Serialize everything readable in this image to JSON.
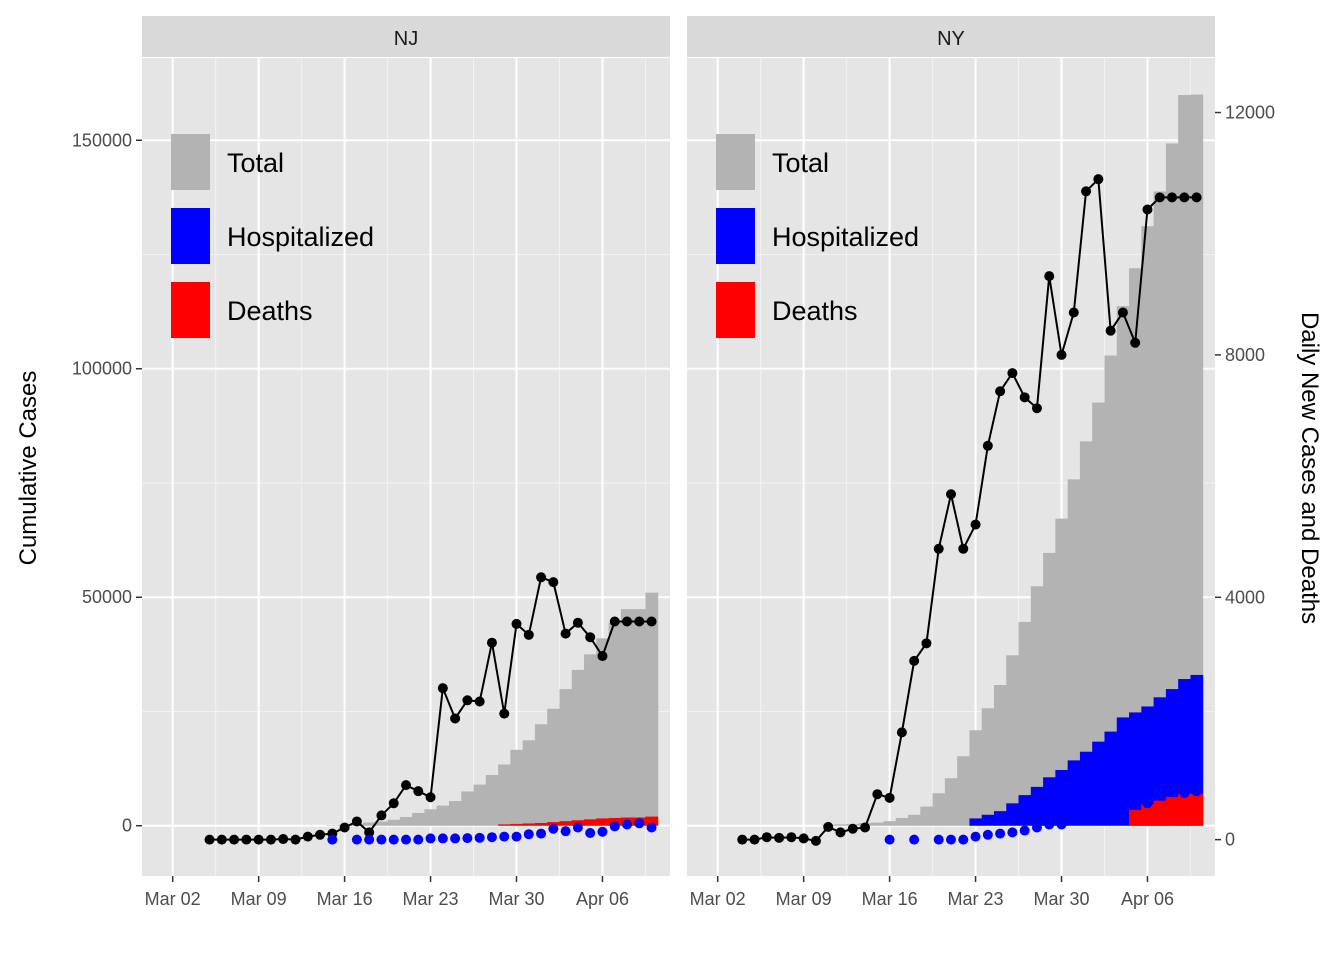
{
  "colors": {
    "panel_bg": "#e5e5e5",
    "strip_bg": "#d9d9d9",
    "total": "#b3b3b3",
    "hospitalized": "#0000ff",
    "deaths": "#ff0000",
    "daily_cases": "#000000",
    "daily_deaths": "#0000ff"
  },
  "chart_data": {
    "type": "bar",
    "y_left_label": "Cumulative Cases",
    "y_right_label": "Daily New Cases and Deaths",
    "ylim_left": [
      -11000,
      168000
    ],
    "ylim_right": [
      -600,
      12900
    ],
    "y_left_ticks": [
      0,
      50000,
      100000,
      150000
    ],
    "y_left_tick_labels": [
      "0",
      "50000",
      "100000",
      "150000"
    ],
    "y_right_ticks": [
      0,
      4000,
      8000,
      12000
    ],
    "y_right_tick_labels": [
      "0",
      "4000",
      "8000",
      "12000"
    ],
    "x_ticks": [
      "Mar 02",
      "Mar 09",
      "Mar 16",
      "Mar 23",
      "Mar 30",
      "Apr 06"
    ],
    "x_range_days_from_mar_01": [
      -1.5,
      41.5
    ],
    "legend": {
      "position": "top-left",
      "entries": [
        {
          "label": "Total",
          "color": "#b3b3b3"
        },
        {
          "label": "Hospitalized",
          "color": "#0000ff"
        },
        {
          "label": "Deaths",
          "color": "#ff0000"
        }
      ]
    },
    "panels": [
      {
        "name": "NJ",
        "cumulative_dates": [
          "2020-03-04",
          "2020-03-05",
          "2020-03-06",
          "2020-03-07",
          "2020-03-08",
          "2020-03-09",
          "2020-03-10",
          "2020-03-11",
          "2020-03-12",
          "2020-03-13",
          "2020-03-14",
          "2020-03-15",
          "2020-03-16",
          "2020-03-17",
          "2020-03-18",
          "2020-03-19",
          "2020-03-20",
          "2020-03-21",
          "2020-03-22",
          "2020-03-23",
          "2020-03-24",
          "2020-03-25",
          "2020-03-26",
          "2020-03-27",
          "2020-03-28",
          "2020-03-29",
          "2020-03-30",
          "2020-03-31",
          "2020-04-01",
          "2020-04-02",
          "2020-04-03",
          "2020-04-04",
          "2020-04-05",
          "2020-04-06",
          "2020-04-07",
          "2020-04-08",
          "2020-04-09",
          "2020-04-10"
        ],
        "total": [
          0,
          0,
          0,
          0,
          0,
          0,
          0,
          0,
          0,
          0,
          0,
          100,
          200,
          400,
          700,
          900,
          1300,
          1900,
          2800,
          3600,
          4400,
          5400,
          7500,
          9000,
          11100,
          13400,
          16600,
          18700,
          22200,
          25600,
          29900,
          34100,
          37500,
          41000,
          44400,
          47400,
          47400,
          51000
        ],
        "hospitalized": [
          0,
          0,
          0,
          0,
          0,
          0,
          0,
          0,
          0,
          0,
          0,
          0,
          0,
          0,
          0,
          0,
          0,
          0,
          0,
          0,
          0,
          0,
          0,
          0,
          0,
          0,
          0,
          0,
          0,
          0,
          0,
          0,
          0,
          0,
          0,
          0,
          0,
          0
        ],
        "deaths": [
          0,
          0,
          0,
          0,
          0,
          0,
          0,
          0,
          0,
          0,
          0,
          0,
          0,
          0,
          0,
          0,
          0,
          0,
          0,
          0,
          0,
          0,
          0,
          0,
          0,
          300,
          400,
          500,
          600,
          800,
          1000,
          1200,
          1400,
          1600,
          1700,
          1800,
          1800,
          2000
        ],
        "daily_case_dates": [
          "2020-03-05",
          "2020-03-06",
          "2020-03-07",
          "2020-03-08",
          "2020-03-09",
          "2020-03-10",
          "2020-03-11",
          "2020-03-12",
          "2020-03-13",
          "2020-03-14",
          "2020-03-15",
          "2020-03-16",
          "2020-03-17",
          "2020-03-18",
          "2020-03-19",
          "2020-03-20",
          "2020-03-21",
          "2020-03-22",
          "2020-03-23",
          "2020-03-24",
          "2020-03-25",
          "2020-03-26",
          "2020-03-27",
          "2020-03-28",
          "2020-03-29",
          "2020-03-30",
          "2020-03-31",
          "2020-04-01",
          "2020-04-02",
          "2020-04-03",
          "2020-04-04",
          "2020-04-05",
          "2020-04-06",
          "2020-04-07",
          "2020-04-08",
          "2020-04-09",
          "2020-04-10"
        ],
        "daily_cases": [
          0,
          0,
          0,
          0,
          0,
          0,
          10,
          0,
          50,
          80,
          100,
          200,
          300,
          120,
          400,
          600,
          900,
          800,
          700,
          2500,
          2000,
          2300,
          2280,
          3250,
          2080,
          3560,
          3380,
          4330,
          4250,
          3400,
          3580,
          3340,
          3030,
          3600,
          3600,
          3600,
          3600
        ],
        "daily_death_dates": [
          "2020-03-15",
          "2020-03-17",
          "2020-03-18",
          "2020-03-19",
          "2020-03-20",
          "2020-03-21",
          "2020-03-22",
          "2020-03-23",
          "2020-03-24",
          "2020-03-25",
          "2020-03-26",
          "2020-03-27",
          "2020-03-28",
          "2020-03-29",
          "2020-03-30",
          "2020-03-31",
          "2020-04-01",
          "2020-04-02",
          "2020-04-03",
          "2020-04-04",
          "2020-04-05",
          "2020-04-06",
          "2020-04-07",
          "2020-04-08",
          "2020-04-09",
          "2020-04-10"
        ],
        "daily_deaths": [
          0,
          0,
          0,
          0,
          0,
          0,
          0,
          20,
          20,
          20,
          25,
          30,
          40,
          50,
          50,
          90,
          100,
          180,
          140,
          200,
          110,
          130,
          220,
          250,
          270,
          200
        ]
      },
      {
        "name": "NY",
        "cumulative_dates": [
          "2020-03-02",
          "2020-03-03",
          "2020-03-04",
          "2020-03-05",
          "2020-03-06",
          "2020-03-07",
          "2020-03-08",
          "2020-03-09",
          "2020-03-10",
          "2020-03-11",
          "2020-03-12",
          "2020-03-13",
          "2020-03-14",
          "2020-03-15",
          "2020-03-16",
          "2020-03-17",
          "2020-03-18",
          "2020-03-19",
          "2020-03-20",
          "2020-03-21",
          "2020-03-22",
          "2020-03-23",
          "2020-03-24",
          "2020-03-25",
          "2020-03-26",
          "2020-03-27",
          "2020-03-28",
          "2020-03-29",
          "2020-03-30",
          "2020-03-31",
          "2020-04-01",
          "2020-04-02",
          "2020-04-03",
          "2020-04-04",
          "2020-04-05",
          "2020-04-06",
          "2020-04-07",
          "2020-04-08",
          "2020-04-09",
          "2020-04-10"
        ],
        "total": [
          0,
          0,
          0,
          0,
          0,
          0,
          0,
          0,
          0,
          200,
          300,
          400,
          600,
          700,
          1000,
          1700,
          2400,
          4200,
          7100,
          10400,
          15200,
          20900,
          25700,
          30800,
          37300,
          44600,
          52400,
          59700,
          67200,
          75800,
          84100,
          92600,
          102900,
          113700,
          122000,
          131200,
          138800,
          149300,
          159900,
          160000
        ],
        "hospitalized": [
          0,
          0,
          0,
          0,
          0,
          0,
          0,
          0,
          0,
          0,
          0,
          0,
          0,
          0,
          0,
          0,
          0,
          0,
          0,
          0,
          0,
          1600,
          2400,
          3200,
          4900,
          6700,
          8500,
          10600,
          12200,
          14300,
          16200,
          18400,
          20600,
          23700,
          24800,
          26100,
          28100,
          29900,
          32100,
          33000
        ],
        "deaths": [
          0,
          0,
          0,
          0,
          0,
          0,
          0,
          0,
          0,
          0,
          0,
          0,
          0,
          0,
          0,
          0,
          0,
          0,
          0,
          0,
          0,
          0,
          0,
          0,
          0,
          0,
          0,
          0,
          0,
          0,
          0,
          0,
          0,
          0,
          3500,
          4700,
          5500,
          6300,
          7000,
          7000
        ],
        "daily_case_dates": [
          "2020-03-04",
          "2020-03-05",
          "2020-03-06",
          "2020-03-07",
          "2020-03-08",
          "2020-03-09",
          "2020-03-10",
          "2020-03-11",
          "2020-03-12",
          "2020-03-13",
          "2020-03-14",
          "2020-03-15",
          "2020-03-16",
          "2020-03-17",
          "2020-03-18",
          "2020-03-19",
          "2020-03-20",
          "2020-03-21",
          "2020-03-22",
          "2020-03-23",
          "2020-03-24",
          "2020-03-25",
          "2020-03-26",
          "2020-03-27",
          "2020-03-28",
          "2020-03-29",
          "2020-03-30",
          "2020-03-31",
          "2020-04-01",
          "2020-04-02",
          "2020-04-03",
          "2020-04-04",
          "2020-04-05",
          "2020-04-06",
          "2020-04-07",
          "2020-04-08",
          "2020-04-09",
          "2020-04-10"
        ],
        "daily_cases": [
          0,
          0,
          40,
          30,
          40,
          20,
          -20,
          210,
          120,
          180,
          200,
          750,
          690,
          1770,
          2950,
          3240,
          4800,
          5700,
          4800,
          5200,
          6500,
          7400,
          7700,
          7300,
          7120,
          9300,
          8000,
          8700,
          10700,
          10900,
          8400,
          8700,
          8200,
          10400,
          10600,
          10600,
          10600,
          10600
        ],
        "daily_death_dates": [
          "2020-03-16",
          "2020-03-18",
          "2020-03-20",
          "2020-03-21",
          "2020-03-22",
          "2020-03-23",
          "2020-03-24",
          "2020-03-25",
          "2020-03-26",
          "2020-03-27",
          "2020-03-28",
          "2020-03-29",
          "2020-03-30",
          "2020-03-31",
          "2020-04-01",
          "2020-04-02",
          "2020-04-03",
          "2020-04-04",
          "2020-04-05",
          "2020-04-06",
          "2020-04-07",
          "2020-04-08",
          "2020-04-09",
          "2020-04-10"
        ],
        "daily_deaths": [
          0,
          0,
          0,
          0,
          0,
          50,
          80,
          100,
          120,
          150,
          200,
          250,
          250,
          330,
          390,
          430,
          560,
          630,
          590,
          600,
          730,
          800,
          770,
          800
        ]
      }
    ]
  }
}
